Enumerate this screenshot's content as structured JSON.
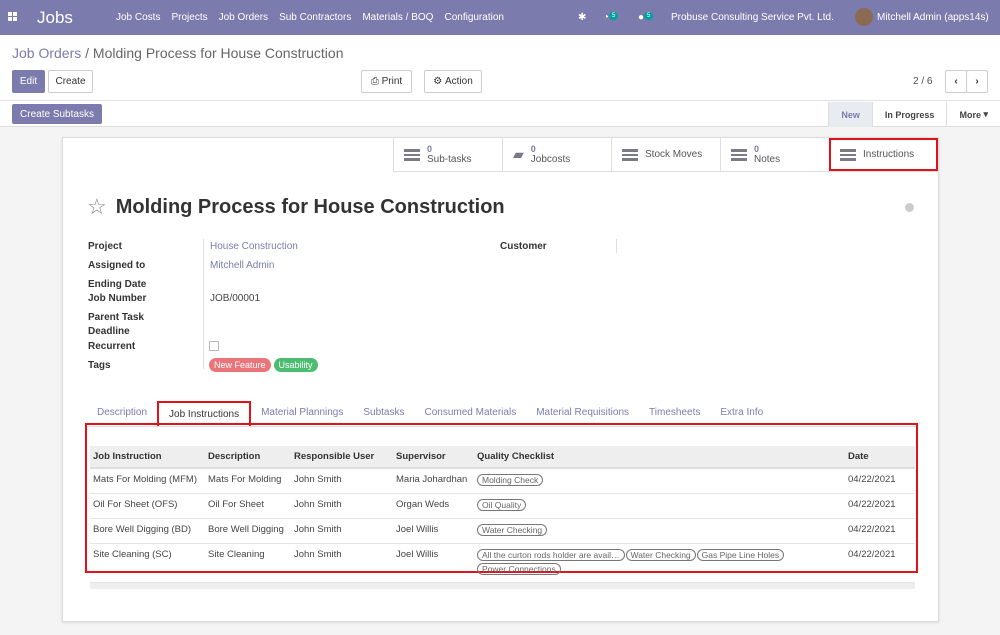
{
  "navbar": {
    "app": "Jobs",
    "menu": [
      "Job Costs",
      "Projects",
      "Job Orders",
      "Sub Contractors",
      "Materials / BOQ",
      "Configuration"
    ],
    "activity_count": "5",
    "messages_count": "5",
    "company": "Probuse Consulting Service Pvt. Ltd.",
    "user": "Mitchell Admin (apps14s)"
  },
  "breadcrumb": {
    "parent": "Job Orders",
    "current": "Molding Process for House Construction"
  },
  "toolbar": {
    "edit": "Edit",
    "create": "Create",
    "print": "Print",
    "action": "Action",
    "pager": "2 / 6",
    "create_subtasks": "Create Subtasks"
  },
  "statusbar": {
    "stages": [
      "New",
      "In Progress"
    ],
    "more": "More"
  },
  "smart_buttons": [
    {
      "count": "0",
      "label": "Sub-tasks"
    },
    {
      "count": "0",
      "label": "Jobcosts"
    },
    {
      "label": "Stock Moves"
    },
    {
      "count": "0",
      "label": "Notes"
    },
    {
      "label": "Instructions"
    }
  ],
  "record": {
    "title": "Molding Process for House Construction",
    "labels": {
      "project": "Project",
      "assigned": "Assigned to",
      "ending": "Ending Date",
      "job_number": "Job Number",
      "parent": "Parent Task",
      "deadline": "Deadline",
      "recurrent": "Recurrent",
      "tags": "Tags",
      "customer": "Customer"
    },
    "project": "House Construction",
    "assigned": "Mitchell Admin",
    "job_number": "JOB/00001",
    "tags": [
      {
        "label": "New Feature",
        "color": "#e9757a"
      },
      {
        "label": "Usability",
        "color": "#4cbd70"
      }
    ]
  },
  "tabs": [
    "Description",
    "Job Instructions",
    "Material Plannings",
    "Subtasks",
    "Consumed Materials",
    "Material Requisitions",
    "Timesheets",
    "Extra Info"
  ],
  "table": {
    "headers": [
      "Job Instruction",
      "Description",
      "Responsible User",
      "Supervisor",
      "Quality Checklist",
      "Date"
    ],
    "rows": [
      {
        "instruction": "Mats For Molding (MFM)",
        "description": "Mats For Molding",
        "user": "John Smith",
        "supervisor": "Maria Johardhan",
        "checklist": [
          "Molding Check"
        ],
        "date": "04/22/2021"
      },
      {
        "instruction": "Oil For Sheet (OFS)",
        "description": "Oil For Sheet",
        "user": "John Smith",
        "supervisor": "Organ Weds",
        "checklist": [
          "Oil Quality"
        ],
        "date": "04/22/2021"
      },
      {
        "instruction": "Bore Well Digging (BD)",
        "description": "Bore Well Digging",
        "user": "John Smith",
        "supervisor": "Joel Willis",
        "checklist": [
          "Water Checking"
        ],
        "date": "04/22/2021"
      },
      {
        "instruction": "Site Cleaning (SC)",
        "description": "Site Cleaning",
        "user": "John Smith",
        "supervisor": "Joel Willis",
        "checklist": [
          "All the curton rods holder are avail…",
          "Water Checking",
          "Gas Pipe Line Holes",
          "Power Connections"
        ],
        "date": "04/22/2021"
      }
    ]
  },
  "colors": {
    "brand": "#7c7bad",
    "highlight": "#e0121a"
  }
}
